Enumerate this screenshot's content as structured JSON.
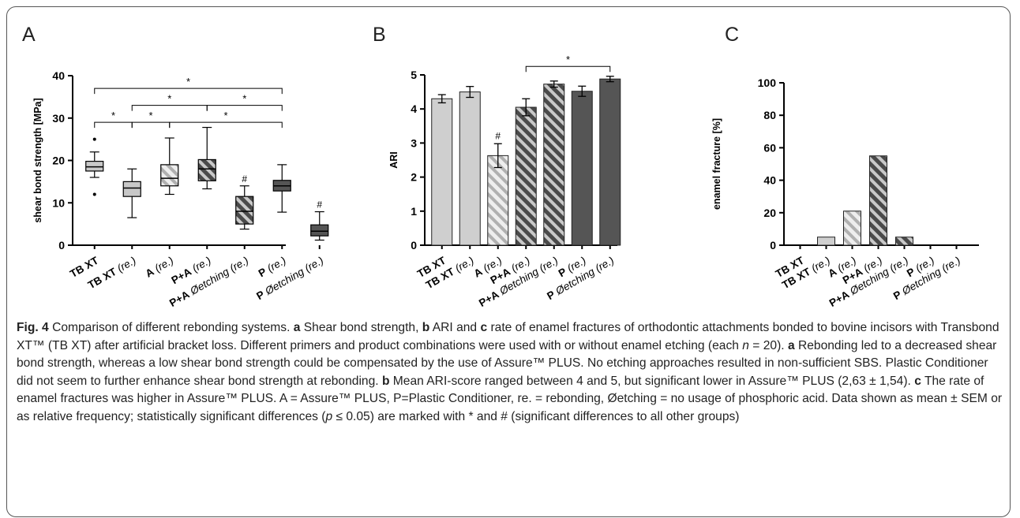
{
  "figure": {
    "caption": {
      "fig_label": "Fig. 4",
      "segments": [
        {
          "t": " Comparison of different rebonding systems. "
        },
        {
          "t": "a",
          "b": true
        },
        {
          "t": " Shear bond strength, "
        },
        {
          "t": "b",
          "b": true
        },
        {
          "t": " ARI and "
        },
        {
          "t": "c",
          "b": true
        },
        {
          "t": " rate of enamel fractures of orthodontic attachments bonded to bovine incisors with Transbond XT™ (TB XT) after artificial bracket loss. Different primers and product combinations were used with or without enamel etching (each "
        },
        {
          "t": "n",
          "i": true
        },
        {
          "t": " = 20). "
        },
        {
          "t": "a",
          "b": true
        },
        {
          "t": " Rebonding led to a decreased shear bond strength, whereas a low shear bond strength could be compensated by the use of Assure™ PLUS. No etching approaches resulted in non-sufficient SBS. Plastic Conditioner did not seem to further enhance shear bond strength at rebonding. "
        },
        {
          "t": "b",
          "b": true
        },
        {
          "t": " Mean ARI-score ranged between 4 and 5, but significant lower in Assure™ PLUS (2,63 ± 1,54). "
        },
        {
          "t": "c",
          "b": true
        },
        {
          "t": " The rate of enamel fractures was higher in Assure™ PLUS. A = Assure™ PLUS, P=Plastic Conditioner, re. = rebonding, Øetching = no usage of phosphoric acid. Data shown as mean ± SEM or as relative frequency; statistically significant differences ("
        },
        {
          "t": "p",
          "i": true
        },
        {
          "t": " ≤ 0.05) are marked with * and # (significant differences to all other groups)"
        }
      ]
    }
  },
  "chart_data": [
    {
      "panel": "A",
      "type": "box",
      "ylabel": "shear bond strength [MPa]",
      "ylim": [
        0,
        40
      ],
      "yticks": [
        "0",
        "10",
        "20",
        "30",
        "40"
      ],
      "categories": [
        {
          "main": "TB XT",
          "suffix": ""
        },
        {
          "main": "TB XT",
          "suffix": " (re.)"
        },
        {
          "main": "A",
          "suffix": " (re.)"
        },
        {
          "main": "P+A",
          "suffix": " (re.)"
        },
        {
          "main": "P+A",
          "suffix": " Øetching (re.)"
        },
        {
          "main": "P",
          "suffix": " (re.)"
        },
        {
          "main": "P",
          "suffix": " Øetching (re.)"
        }
      ],
      "boxes": [
        {
          "min": 16.0,
          "q1": 17.5,
          "median": 18.5,
          "q3": 19.8,
          "max": 22.0,
          "outliers": [
            25.0,
            12.0
          ],
          "fill": "#c8c8c8",
          "hatch": false,
          "mark": ""
        },
        {
          "min": 6.5,
          "q1": 11.5,
          "median": 13.5,
          "q3": 15.0,
          "max": 18.0,
          "outliers": [],
          "fill": "#c8c8c8",
          "hatch": false,
          "mark": ""
        },
        {
          "min": 12.0,
          "q1": 14.0,
          "median": 15.8,
          "q3": 19.0,
          "max": 25.3,
          "outliers": [],
          "fill": "#d6d6d6",
          "hatch": true,
          "mark": ""
        },
        {
          "min": 13.3,
          "q1": 15.2,
          "median": 18.0,
          "q3": 20.2,
          "max": 27.8,
          "outliers": [],
          "fill": "#5a5a5a",
          "hatch": true,
          "mark": ""
        },
        {
          "min": 3.8,
          "q1": 5.0,
          "median": 8.0,
          "q3": 11.5,
          "max": 14.0,
          "outliers": [],
          "fill": "#5a5a5a",
          "hatch": true,
          "mark": "#"
        },
        {
          "min": 7.8,
          "q1": 12.8,
          "median": 14.0,
          "q3": 15.3,
          "max": 19.0,
          "outliers": [],
          "fill": "#555555",
          "hatch": false,
          "mark": ""
        },
        {
          "min": 1.2,
          "q1": 2.2,
          "median": 3.3,
          "q3": 4.8,
          "max": 7.9,
          "outliers": [],
          "fill": "#555555",
          "hatch": false,
          "mark": "#"
        }
      ],
      "significance": [
        {
          "a": 0,
          "b": 1,
          "y": 29,
          "label": "*"
        },
        {
          "a": 1,
          "b": 2,
          "y": 29,
          "label": "*"
        },
        {
          "a": 2,
          "b": 5,
          "y": 29,
          "label": "*"
        },
        {
          "a": 1,
          "b": 3,
          "y": 33,
          "label": "*"
        },
        {
          "a": 3,
          "b": 5,
          "y": 33,
          "label": "*"
        },
        {
          "a": 0,
          "b": 5,
          "y": 37,
          "label": "*"
        }
      ]
    },
    {
      "panel": "B",
      "type": "bar",
      "ylabel": "ARI",
      "ylim": [
        0,
        5
      ],
      "yticks": [
        "0",
        "1",
        "2",
        "3",
        "4",
        "5"
      ],
      "categories": [
        {
          "main": "TB XT",
          "suffix": ""
        },
        {
          "main": "TB XT",
          "suffix": " (re.)"
        },
        {
          "main": "A",
          "suffix": " (re.)"
        },
        {
          "main": "P+A",
          "suffix": " (re.)"
        },
        {
          "main": "P+A",
          "suffix": " Øetching (re.)"
        },
        {
          "main": "P",
          "suffix": " (re.)"
        },
        {
          "main": "P",
          "suffix": " Øetching (re.)"
        }
      ],
      "values": [
        4.3,
        4.5,
        2.63,
        4.05,
        4.73,
        4.52,
        4.88
      ],
      "errors": [
        0.12,
        0.16,
        0.35,
        0.25,
        0.09,
        0.15,
        0.08
      ],
      "fills": [
        "#cfcfcf",
        "#cfcfcf",
        "#d9d9d9",
        "#5a5a5a",
        "#5a5a5a",
        "#555555",
        "#555555"
      ],
      "hatch": [
        false,
        false,
        true,
        true,
        true,
        false,
        false
      ],
      "marks": [
        "",
        "",
        "#",
        "",
        "",
        "",
        ""
      ],
      "significance": [
        {
          "a": 3,
          "b": 6,
          "y": 5.25,
          "label": "*"
        }
      ]
    },
    {
      "panel": "C",
      "type": "bar",
      "ylabel": "enamel fracture [%]",
      "ylim": [
        0,
        100
      ],
      "yticks": [
        "0",
        "20",
        "40",
        "60",
        "80",
        "100"
      ],
      "categories": [
        {
          "main": "TB XT",
          "suffix": ""
        },
        {
          "main": "TB XT",
          "suffix": " (re.)"
        },
        {
          "main": "A",
          "suffix": " (re.)"
        },
        {
          "main": "P+A",
          "suffix": " (re.)"
        },
        {
          "main": "P+A",
          "suffix": " Øetching (re.)"
        },
        {
          "main": "P",
          "suffix": " (re.)"
        },
        {
          "main": "P",
          "suffix": " Øetching (re.)"
        }
      ],
      "values": [
        0,
        5,
        21,
        55,
        5,
        0,
        0
      ],
      "fills": [
        "#cfcfcf",
        "#cfcfcf",
        "#d9d9d9",
        "#5a5a5a",
        "#5a5a5a",
        "#555555",
        "#555555"
      ],
      "hatch": [
        false,
        false,
        true,
        true,
        true,
        false,
        false
      ]
    }
  ]
}
